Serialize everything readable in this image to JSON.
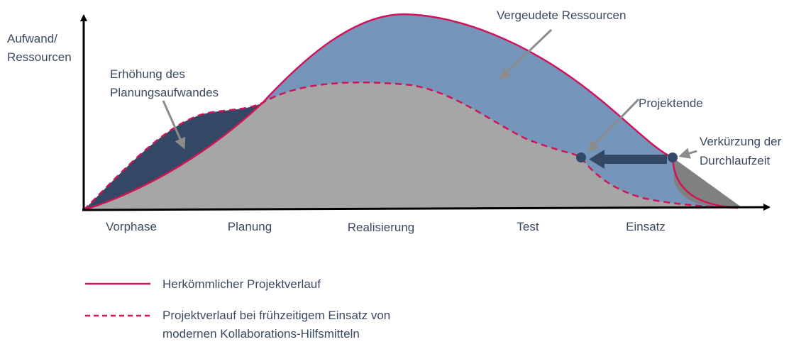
{
  "axis": {
    "y_label_line1": "Aufwand/",
    "y_label_line2": "Ressourcen"
  },
  "phases": [
    "Vorphase",
    "Planung",
    "Realisierung",
    "Test",
    "Einsatz"
  ],
  "annotations": {
    "planning_line1": "Erhöhung des",
    "planning_line2": "Planungsaufwandes",
    "wasted": "Vergeudete Ressourcen",
    "project_end": "Projektende",
    "shorten_line1": "Verkürzung der",
    "shorten_line2": "Durchlaufzeit"
  },
  "legend": {
    "solid_label": "Herkömmlicher Projektverlauf",
    "dashed_label_line1": "Projektverlauf bei frühzeitigem Einsatz von",
    "dashed_label_line2": "modernen Kollaborations-Hilfsmitteln"
  },
  "colors": {
    "wasted_fill": "#7695bb",
    "planning_fill": "#334864",
    "base_fill": "#a6a6a6",
    "tail_fill": "#808080",
    "curve": "#d0145a",
    "axis": "#000000",
    "callout_arrow": "#8c8c8c",
    "shorten_arrow": "#334864",
    "text": "#3b4a5e"
  }
}
